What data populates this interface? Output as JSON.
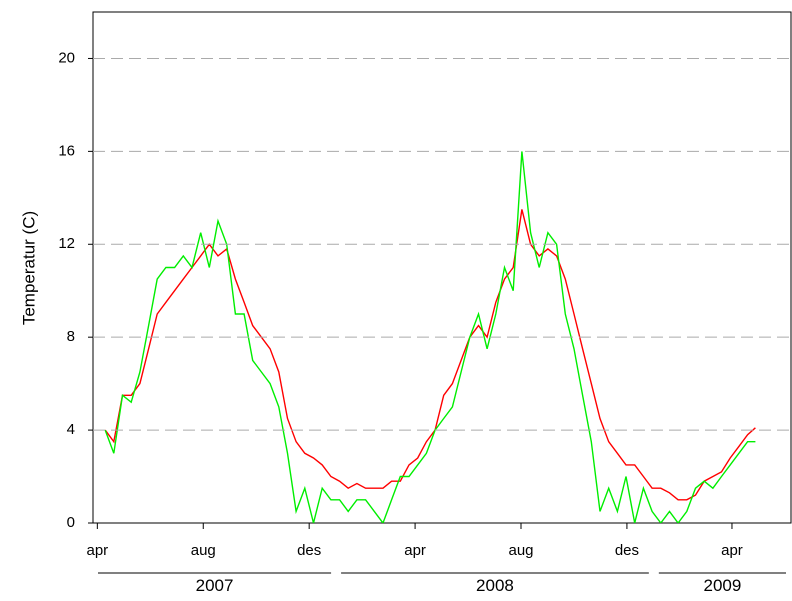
{
  "chart_data": {
    "type": "line",
    "y_label": "Temperatur (C)",
    "x": [
      "2007-04-10",
      "2007-04-20",
      "2007-04-30",
      "2007-05-10",
      "2007-05-20",
      "2007-05-30",
      "2007-06-09",
      "2007-06-19",
      "2007-06-29",
      "2007-07-09",
      "2007-07-19",
      "2007-07-29",
      "2007-08-08",
      "2007-08-18",
      "2007-08-28",
      "2007-09-07",
      "2007-09-17",
      "2007-09-27",
      "2007-10-07",
      "2007-10-17",
      "2007-10-27",
      "2007-11-06",
      "2007-11-16",
      "2007-11-26",
      "2007-12-06",
      "2007-12-16",
      "2007-12-26",
      "2008-01-05",
      "2008-01-15",
      "2008-01-25",
      "2008-02-04",
      "2008-02-14",
      "2008-02-24",
      "2008-03-05",
      "2008-03-15",
      "2008-03-25",
      "2008-04-04",
      "2008-04-14",
      "2008-04-24",
      "2008-05-04",
      "2008-05-14",
      "2008-05-24",
      "2008-06-03",
      "2008-06-13",
      "2008-06-23",
      "2008-07-03",
      "2008-07-13",
      "2008-07-23",
      "2008-08-02",
      "2008-08-12",
      "2008-08-22",
      "2008-09-01",
      "2008-09-11",
      "2008-09-21",
      "2008-10-01",
      "2008-10-11",
      "2008-10-21",
      "2008-10-31",
      "2008-11-10",
      "2008-11-20",
      "2008-11-30",
      "2008-12-10",
      "2008-12-20",
      "2008-12-30",
      "2009-01-09",
      "2009-01-19",
      "2009-01-29",
      "2009-02-08",
      "2009-02-18",
      "2009-02-28",
      "2009-03-10",
      "2009-03-20",
      "2009-03-30",
      "2009-04-09",
      "2009-04-19",
      "2009-04-28"
    ],
    "series": [
      {
        "color": "#ff0000",
        "values": [
          4.0,
          3.5,
          5.5,
          5.5,
          6.0,
          7.5,
          9.0,
          9.5,
          10.0,
          10.5,
          11.0,
          11.5,
          12.0,
          11.5,
          11.8,
          10.5,
          9.5,
          8.5,
          8.0,
          7.5,
          6.5,
          4.5,
          3.5,
          3.0,
          2.8,
          2.5,
          2.0,
          1.8,
          1.5,
          1.7,
          1.5,
          1.5,
          1.5,
          1.8,
          1.8,
          2.5,
          2.8,
          3.5,
          4.0,
          5.5,
          6.0,
          7.0,
          8.0,
          8.5,
          8.0,
          9.5,
          10.5,
          11.0,
          13.5,
          12.0,
          11.5,
          11.8,
          11.5,
          10.5,
          9.0,
          7.5,
          6.0,
          4.5,
          3.5,
          3.0,
          2.5,
          2.5,
          2.0,
          1.5,
          1.5,
          1.3,
          1.0,
          1.0,
          1.2,
          1.8,
          2.0,
          2.2,
          2.8,
          3.3,
          3.8,
          4.1
        ]
      },
      {
        "color": "#00ee00",
        "values": [
          4.0,
          3.0,
          5.5,
          5.2,
          6.5,
          8.5,
          10.5,
          11.0,
          11.0,
          11.5,
          11.0,
          12.5,
          11.0,
          13.0,
          12.0,
          9.0,
          9.0,
          7.0,
          6.5,
          6.0,
          5.0,
          3.0,
          0.5,
          1.5,
          0.0,
          1.5,
          1.0,
          1.0,
          0.5,
          1.0,
          1.0,
          0.5,
          0.0,
          1.0,
          2.0,
          2.0,
          2.5,
          3.0,
          4.0,
          4.5,
          5.0,
          6.5,
          8.0,
          9.0,
          7.5,
          9.0,
          11.0,
          10.0,
          16.0,
          12.5,
          11.0,
          12.5,
          12.0,
          9.0,
          7.5,
          5.5,
          3.5,
          0.5,
          1.5,
          0.5,
          2.0,
          0.0,
          1.5,
          0.5,
          0.0,
          0.5,
          0.0,
          0.5,
          1.5,
          1.8,
          1.5,
          2.0,
          2.5,
          3.0,
          3.5,
          3.5
        ]
      }
    ],
    "xlim": [
      "2007-03-27",
      "2009-06-08"
    ],
    "xticks": [
      {
        "value": "2007-04-01",
        "label": "apr"
      },
      {
        "value": "2007-08-01",
        "label": "aug"
      },
      {
        "value": "2007-12-01",
        "label": "des"
      },
      {
        "value": "2008-04-01",
        "label": "apr"
      },
      {
        "value": "2008-08-01",
        "label": "aug"
      },
      {
        "value": "2008-12-01",
        "label": "des"
      },
      {
        "value": "2009-04-01",
        "label": "apr"
      }
    ],
    "years": [
      "2007",
      "2008",
      "2009"
    ],
    "ylim": [
      0,
      22
    ],
    "yticks": [
      0,
      4,
      8,
      12,
      16,
      20
    ],
    "grid": true
  }
}
